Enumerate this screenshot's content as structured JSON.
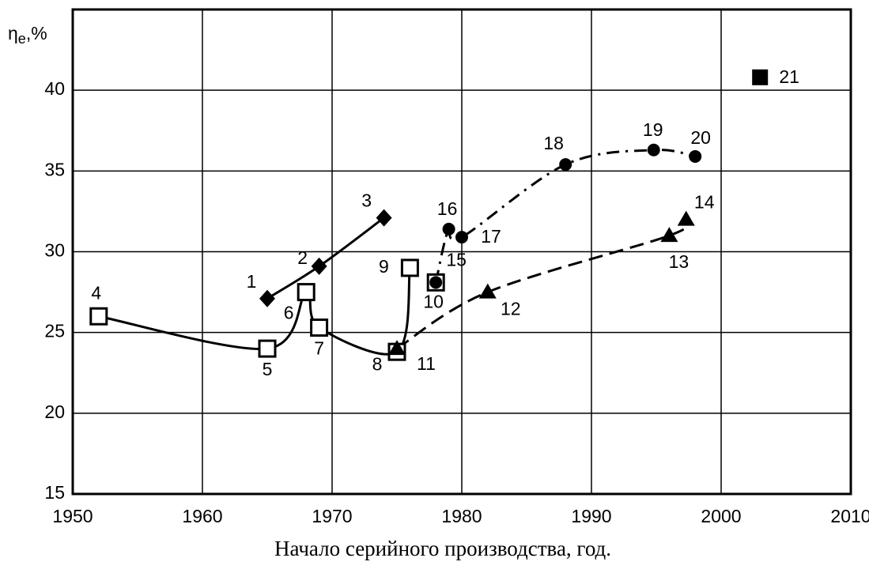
{
  "chart_data": {
    "type": "scatter",
    "xlabel": "Начало серийного производства, год.",
    "ylabel": {
      "symbol": "η",
      "subscript": "e",
      "unit": ",%"
    },
    "xlim": [
      1950,
      2010
    ],
    "ylim": [
      15,
      45
    ],
    "xticks": [
      1950,
      1960,
      1970,
      1980,
      1990,
      2000,
      2010
    ],
    "yticks": [
      15,
      20,
      25,
      30,
      35,
      40
    ],
    "grid": true,
    "series": [
      {
        "marker": "diamond",
        "line": "solid",
        "color": "#000000",
        "x": [
          1965,
          1969,
          1974
        ],
        "values": [
          27.1,
          29.1,
          32.1
        ],
        "labels": [
          "1",
          "2",
          "3"
        ]
      },
      {
        "marker": "square-open",
        "line": "solid",
        "color": "#000000",
        "x": [
          1952,
          1965,
          1968,
          1969,
          1975,
          1976
        ],
        "values": [
          26.0,
          24.0,
          27.5,
          25.3,
          23.8,
          29.0
        ],
        "labels": [
          "4",
          "5",
          "6",
          "7",
          "8",
          "9"
        ]
      },
      {
        "marker": "square-open",
        "line": "none",
        "color": "#000000",
        "x": [
          1978
        ],
        "values": [
          28.1
        ],
        "labels": [
          "10"
        ]
      },
      {
        "marker": "triangle",
        "line": "dashed",
        "color": "#000000",
        "x": [
          1975,
          1982,
          1996,
          1997.3
        ],
        "values": [
          24.0,
          27.5,
          31.0,
          32.0
        ],
        "labels": [
          "11",
          "12",
          "13",
          "14"
        ]
      },
      {
        "marker": "circle",
        "line": "dashdot",
        "color": "#000000",
        "x": [
          1978,
          1979,
          1980,
          1988,
          1994.8,
          1998
        ],
        "values": [
          28.1,
          31.4,
          30.9,
          35.4,
          36.3,
          35.9
        ],
        "labels": [
          "15",
          "16",
          "17",
          "18",
          "19",
          "20"
        ]
      },
      {
        "marker": "square",
        "line": "none",
        "color": "#000000",
        "x": [
          2003
        ],
        "values": [
          40.8
        ],
        "labels": [
          "21"
        ]
      }
    ]
  }
}
